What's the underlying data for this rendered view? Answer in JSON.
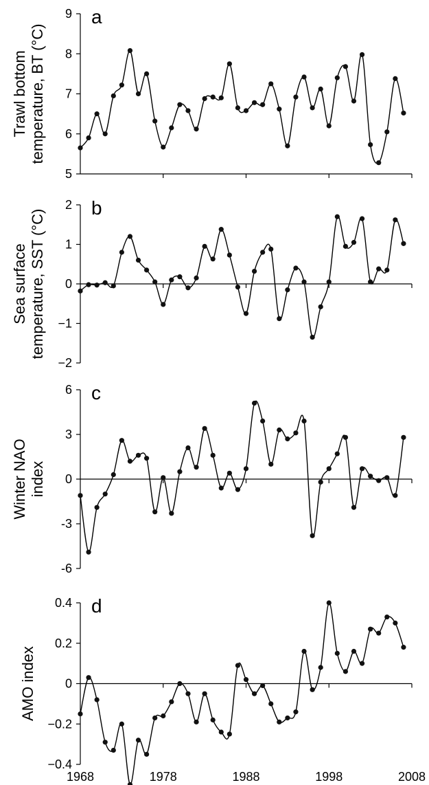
{
  "chart_data": [
    {
      "type": "line",
      "panel_label": "a",
      "ylabel_lines": [
        "Trawl bottom",
        "temperature, BT (°C)"
      ],
      "ylim": [
        5,
        9
      ],
      "yticks": [
        5,
        6,
        7,
        8,
        9
      ],
      "xlim": [
        1968,
        2008
      ],
      "series": [
        {
          "x": [
            1968,
            1969,
            1970,
            1971,
            1972,
            1973,
            1974,
            1975,
            1976,
            1977,
            1978,
            1979,
            1980,
            1981,
            1982,
            1983,
            1984,
            1985,
            1986,
            1987,
            1988,
            1989,
            1990,
            1991,
            1992,
            1993,
            1994,
            1995,
            1996,
            1997,
            1998,
            1999,
            2000,
            2001,
            2002,
            2003,
            2004,
            2005,
            2006,
            2007
          ],
          "values": [
            5.65,
            5.9,
            6.5,
            6.0,
            6.95,
            7.22,
            8.08,
            7.0,
            7.5,
            6.32,
            5.67,
            6.15,
            6.73,
            6.58,
            6.12,
            6.88,
            6.92,
            6.9,
            7.75,
            6.65,
            6.58,
            6.78,
            6.73,
            7.25,
            6.62,
            5.7,
            6.92,
            7.42,
            6.65,
            7.12,
            6.2,
            7.4,
            7.68,
            6.82,
            7.98,
            5.73,
            5.28,
            6.05,
            7.38,
            6.52
          ]
        }
      ]
    },
    {
      "type": "line",
      "panel_label": "b",
      "ylabel_lines": [
        "Sea surface",
        "temperature, SST (°C)"
      ],
      "ylim": [
        -2,
        2
      ],
      "yticks": [
        -2,
        -1,
        0,
        1,
        2
      ],
      "ytick_labels": [
        "−2",
        "−1",
        "0",
        "1",
        "2"
      ],
      "xlim": [
        1968,
        2008
      ],
      "zero_line": true,
      "series": [
        {
          "x": [
            1968,
            1969,
            1970,
            1971,
            1972,
            1973,
            1974,
            1975,
            1976,
            1977,
            1978,
            1979,
            1980,
            1981,
            1982,
            1983,
            1984,
            1985,
            1986,
            1987,
            1988,
            1989,
            1990,
            1991,
            1992,
            1993,
            1994,
            1995,
            1996,
            1997,
            1998,
            1999,
            2000,
            2001,
            2002,
            2003,
            2004,
            2005,
            2006,
            2007
          ],
          "values": [
            -0.18,
            -0.02,
            -0.03,
            0.03,
            -0.05,
            0.8,
            1.2,
            0.6,
            0.35,
            0.05,
            -0.52,
            0.1,
            0.18,
            -0.1,
            0.15,
            0.95,
            0.63,
            1.38,
            0.73,
            -0.08,
            -0.75,
            0.32,
            0.8,
            0.88,
            -0.88,
            -0.15,
            0.4,
            0.05,
            -1.35,
            -0.58,
            0.05,
            1.7,
            0.95,
            1.05,
            1.65,
            0.05,
            0.38,
            0.35,
            1.62,
            1.02
          ]
        }
      ]
    },
    {
      "type": "line",
      "panel_label": "c",
      "ylabel_lines": [
        "Winter NAO",
        "index"
      ],
      "ylim": [
        -6,
        6
      ],
      "yticks": [
        -6,
        -3,
        0,
        3,
        6
      ],
      "ytick_labels": [
        "-6",
        "-3",
        "0",
        "3",
        "6"
      ],
      "xlim": [
        1968,
        2008
      ],
      "zero_line": true,
      "series": [
        {
          "x": [
            1968,
            1969,
            1970,
            1971,
            1972,
            1973,
            1974,
            1975,
            1976,
            1977,
            1978,
            1979,
            1980,
            1981,
            1982,
            1983,
            1984,
            1985,
            1986,
            1987,
            1988,
            1989,
            1990,
            1991,
            1992,
            1993,
            1994,
            1995,
            1996,
            1997,
            1998,
            1999,
            2000,
            2001,
            2002,
            2003,
            2004,
            2005,
            2006,
            2007
          ],
          "values": [
            -1.1,
            -4.9,
            -1.9,
            -1.0,
            0.3,
            2.6,
            1.2,
            1.6,
            1.4,
            -2.2,
            0.1,
            -2.3,
            0.5,
            2.1,
            0.8,
            3.4,
            1.6,
            -0.6,
            0.4,
            -0.7,
            0.7,
            5.1,
            3.9,
            1.0,
            3.3,
            2.7,
            3.1,
            3.9,
            -3.8,
            -0.2,
            0.7,
            1.7,
            2.8,
            -1.9,
            0.7,
            0.2,
            -0.1,
            0.1,
            -1.1,
            2.8
          ]
        }
      ]
    },
    {
      "type": "line",
      "panel_label": "d",
      "ylabel_lines": [
        "AMO index"
      ],
      "ylim": [
        -0.4,
        0.4
      ],
      "yticks": [
        -0.4,
        -0.2,
        0,
        0.2,
        0.4
      ],
      "ytick_labels": [
        "−0.4",
        "−0.2",
        "0",
        "0.2",
        "0.4"
      ],
      "xlim": [
        1968,
        2008
      ],
      "xticks": [
        1968,
        1978,
        1988,
        1998,
        2008
      ],
      "xtick_labels": [
        "1968",
        "1978",
        "1988",
        "1998",
        "2008"
      ],
      "zero_line": true,
      "series": [
        {
          "x": [
            1968,
            1969,
            1970,
            1971,
            1972,
            1973,
            1974,
            1975,
            1976,
            1977,
            1978,
            1979,
            1980,
            1981,
            1982,
            1983,
            1984,
            1985,
            1986,
            1987,
            1988,
            1989,
            1990,
            1991,
            1992,
            1993,
            1994,
            1995,
            1996,
            1997,
            1998,
            1999,
            2000,
            2001,
            2002,
            2003,
            2004,
            2005,
            2006,
            2007
          ],
          "values": [
            -0.15,
            0.03,
            -0.08,
            -0.29,
            -0.33,
            -0.2,
            -0.5,
            -0.28,
            -0.35,
            -0.17,
            -0.16,
            -0.09,
            0.0,
            -0.05,
            -0.19,
            -0.05,
            -0.18,
            -0.24,
            -0.25,
            0.09,
            0.02,
            -0.05,
            -0.01,
            -0.1,
            -0.19,
            -0.17,
            -0.14,
            0.16,
            -0.03,
            0.08,
            0.4,
            0.15,
            0.06,
            0.16,
            0.1,
            0.27,
            0.25,
            0.33,
            0.3,
            0.18
          ]
        }
      ]
    }
  ]
}
